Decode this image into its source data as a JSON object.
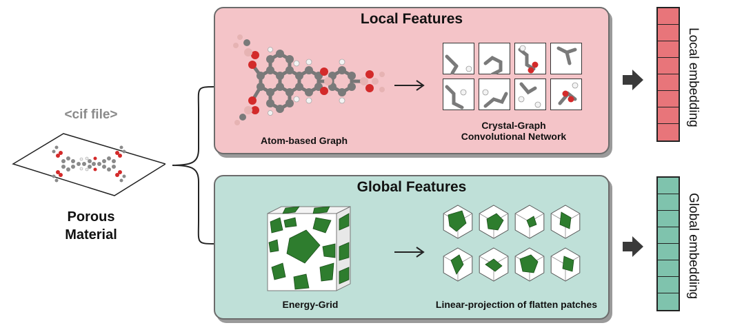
{
  "input": {
    "file_label": "<cif file>",
    "material_label": "Porous\nMaterial"
  },
  "local": {
    "title": "Local Features",
    "graph_label": "Atom-based Graph",
    "network_label_line1": "Crystal-Graph",
    "network_label_line2": "Convolutional Network",
    "embedding_label": "Local embedding",
    "embedding_cells": 8,
    "colors": {
      "panel": "#f4c4c8",
      "embedding": "#e8757a",
      "atom_c": "#8a8a8a",
      "atom_o": "#d32a2a",
      "atom_b": "#e9b7b7",
      "atom_h": "#f2f2f2"
    }
  },
  "global": {
    "title": "Global Features",
    "grid_label": "Energy-Grid",
    "patch_label": "Linear-projection of flatten patches",
    "embedding_label": "Global embedding",
    "embedding_cells": 8,
    "colors": {
      "panel": "#bfe0d8",
      "embedding": "#7fc3ad",
      "energy": "#2e7d2e"
    }
  },
  "icons": [
    "bracket-icon",
    "arrow-right-icon",
    "fat-arrow-icon"
  ]
}
